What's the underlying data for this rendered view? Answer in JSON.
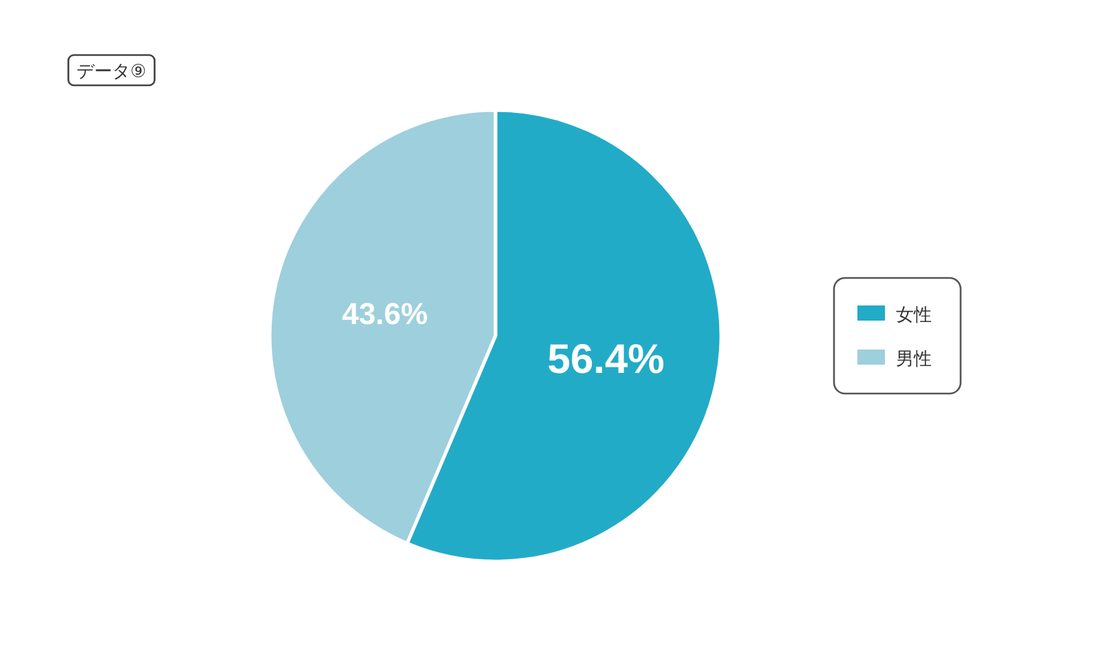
{
  "chart_data": {
    "type": "pie",
    "title": "データ⑨",
    "categories": [
      "女性",
      "男性"
    ],
    "values": [
      56.4,
      43.6
    ],
    "value_labels": [
      "56.4%",
      "43.6%"
    ],
    "colors": [
      "#22abc7",
      "#9ecfdc"
    ],
    "legend": "right"
  }
}
